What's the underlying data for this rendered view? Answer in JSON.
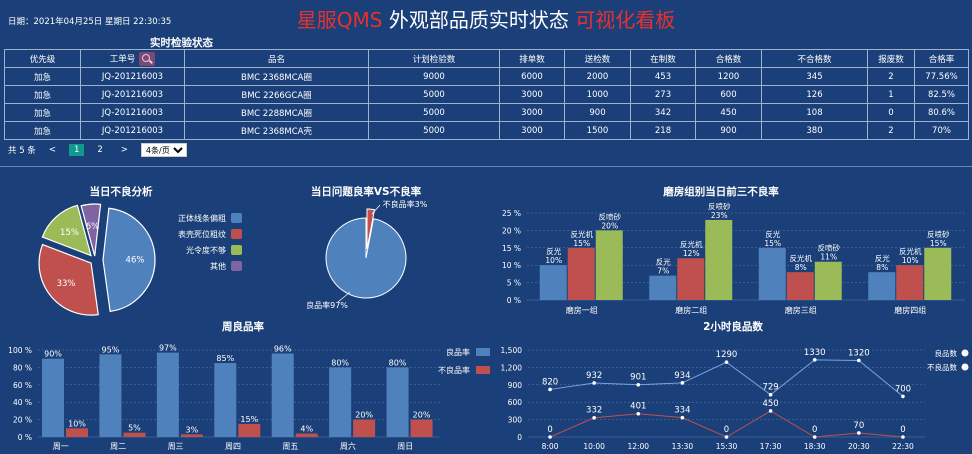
{
  "header": {
    "datetime": "日期：2021年04月25日 星期日 22:30:35",
    "title_part1": "星服QMS",
    "title_part2": "外观部品质实时状态",
    "title_part3": "可视化看板"
  },
  "inspection": {
    "title": "实时检验状态",
    "columns": [
      "优先级",
      "工单号",
      "品名",
      "计划检验数",
      "排单数",
      "送检数",
      "在制数",
      "合格数",
      "不合格数",
      "报废数",
      "合格率"
    ],
    "rows": [
      [
        "加急",
        "JQ-201216003",
        "BMC 2368MCA圈",
        "9000",
        "6000",
        "2000",
        "453",
        "1200",
        "345",
        "2",
        "77.56%"
      ],
      [
        "加急",
        "JQ-201216003",
        "BMC 2266GCA圈",
        "5000",
        "3000",
        "1000",
        "273",
        "600",
        "126",
        "1",
        "82.5%"
      ],
      [
        "加急",
        "JQ-201216003",
        "BMC 2288MCA圈",
        "5000",
        "3000",
        "900",
        "342",
        "450",
        "108",
        "0",
        "80.6%"
      ],
      [
        "加急",
        "JQ-201216003",
        "BMC 2368MCA壳",
        "5000",
        "3000",
        "1500",
        "218",
        "900",
        "380",
        "2",
        "70%"
      ]
    ],
    "pager": {
      "total": "共 5 条",
      "prev": "<",
      "pages": [
        "1",
        "2"
      ],
      "next": ">",
      "page_size": "4条/页"
    }
  },
  "chart_data": [
    {
      "type": "pie",
      "title": "当日不良分析",
      "labels": [
        "正体线条偏粗",
        "表壳死位粗纹",
        "光令度不够",
        "其他"
      ],
      "values": [
        46,
        33,
        15,
        6
      ],
      "value_labels": [
        "46%",
        "33%",
        "15%",
        "6%"
      ],
      "colors": [
        "#4f81bd",
        "#c0504d",
        "#9bbb59",
        "#8064a2"
      ],
      "legend": "right"
    },
    {
      "type": "pie",
      "title": "当日问题良率VS不良率",
      "labels": [
        "良品率",
        "不良品率"
      ],
      "values": [
        97,
        3
      ],
      "value_labels": [
        "良品率97%",
        "不良品率3%"
      ],
      "colors": [
        "#4f81bd",
        "#c0504d"
      ]
    },
    {
      "type": "bar",
      "title": "磨房组别当日前三不良率",
      "categories": [
        "磨房一组",
        "磨房二组",
        "磨房三组",
        "磨房四组"
      ],
      "bars": [
        [
          {
            "name": "反光",
            "value": 10
          },
          {
            "name": "反光机",
            "value": 15
          },
          {
            "name": "反喷砂",
            "value": 20
          }
        ],
        [
          {
            "name": "反光",
            "value": 7
          },
          {
            "name": "反光机",
            "value": 12
          },
          {
            "name": "反喷砂",
            "value": 23
          }
        ],
        [
          {
            "name": "反光",
            "value": 15
          },
          {
            "name": "反光机",
            "value": 8
          },
          {
            "name": "反喷砂",
            "value": 11
          }
        ],
        [
          {
            "name": "反光",
            "value": 8
          },
          {
            "name": "反光机",
            "value": 10
          },
          {
            "name": "反喷砂",
            "value": 15
          }
        ]
      ],
      "colors": [
        "#4f81bd",
        "#c0504d",
        "#9bbb59"
      ],
      "ylim": [
        0,
        25
      ],
      "yticks": [
        "0 %",
        "5 %",
        "10 %",
        "15 %",
        "20 %",
        "25 %"
      ]
    },
    {
      "type": "bar",
      "title": "周良品率",
      "categories": [
        "周一",
        "周二",
        "周三",
        "周四",
        "周五",
        "周六",
        "周日"
      ],
      "series": [
        {
          "name": "良品率",
          "values": [
            90,
            95,
            97,
            85,
            96,
            80,
            80
          ],
          "color": "#4f81bd"
        },
        {
          "name": "不良品率",
          "values": [
            10,
            5,
            3,
            15,
            4,
            20,
            20
          ],
          "color": "#c0504d"
        }
      ],
      "ylim": [
        0,
        100
      ],
      "yticks": [
        "0 %",
        "20 %",
        "40 %",
        "60 %",
        "80 %",
        "100 %"
      ],
      "legend": "right"
    },
    {
      "type": "line",
      "title": "2小时良品数",
      "x": [
        "8:00",
        "10:00",
        "12:00",
        "13:30",
        "15:30",
        "17:30",
        "18:30",
        "20:30",
        "22:30"
      ],
      "series": [
        {
          "name": "良品数",
          "values": [
            820,
            932,
            901,
            934,
            1290,
            729,
            1330,
            1320,
            700
          ],
          "color": "#4f81bd"
        },
        {
          "name": "不良品数",
          "values": [
            0,
            332,
            401,
            334,
            0,
            450,
            0,
            70,
            0
          ],
          "color": "#c0504d"
        }
      ],
      "ylim": [
        0,
        1500
      ],
      "yticks": [
        "0",
        "300",
        "600",
        "900",
        "1,200",
        "1,500"
      ],
      "legend": "right"
    }
  ]
}
